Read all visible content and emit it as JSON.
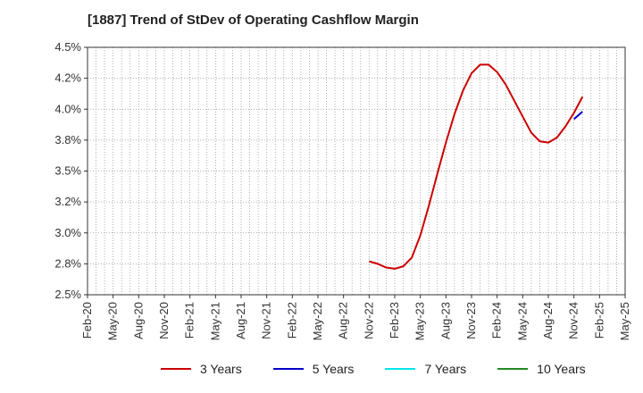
{
  "chart_data": {
    "type": "line",
    "title": "[1887]  Trend of StDev of Operating Cashflow Margin",
    "xlabel": "",
    "ylabel": "",
    "x_ticks": [
      "Feb-20",
      "May-20",
      "Aug-20",
      "Nov-20",
      "Feb-21",
      "May-21",
      "Aug-21",
      "Nov-21",
      "Feb-22",
      "May-22",
      "Aug-22",
      "Nov-22",
      "Feb-23",
      "May-23",
      "Aug-23",
      "Nov-23",
      "Feb-24",
      "May-24",
      "Aug-24",
      "Nov-24",
      "Feb-25",
      "May-25"
    ],
    "y_ticks": [
      "2.5%",
      "2.8%",
      "3.0%",
      "3.2%",
      "3.5%",
      "3.8%",
      "4.0%",
      "4.2%",
      "4.5%"
    ],
    "ylim": [
      2.5,
      4.5
    ],
    "xlim": [
      "2020-02",
      "2025-05"
    ],
    "grid": true,
    "legend_position": "bottom",
    "series": [
      {
        "name": "3 Years",
        "color": "#cc0000",
        "points": [
          [
            "2022-11",
            2.77
          ],
          [
            "2022-12",
            2.75
          ],
          [
            "2023-01",
            2.72
          ],
          [
            "2023-02",
            2.71
          ],
          [
            "2023-03",
            2.73
          ],
          [
            "2023-04",
            2.8
          ],
          [
            "2023-05",
            2.98
          ],
          [
            "2023-06",
            3.22
          ],
          [
            "2023-07",
            3.48
          ],
          [
            "2023-08",
            3.73
          ],
          [
            "2023-09",
            3.96
          ],
          [
            "2023-10",
            4.15
          ],
          [
            "2023-11",
            4.29
          ],
          [
            "2023-12",
            4.36
          ],
          [
            "2024-01",
            4.36
          ],
          [
            "2024-02",
            4.3
          ],
          [
            "2024-03",
            4.2
          ],
          [
            "2024-04",
            4.07
          ],
          [
            "2024-05",
            3.94
          ],
          [
            "2024-06",
            3.81
          ],
          [
            "2024-07",
            3.74
          ],
          [
            "2024-08",
            3.73
          ],
          [
            "2024-09",
            3.77
          ],
          [
            "2024-10",
            3.86
          ],
          [
            "2024-11",
            3.97
          ],
          [
            "2024-12",
            4.1
          ]
        ]
      },
      {
        "name": "5 Years",
        "color": "#0000cc",
        "points": [
          [
            "2024-11",
            3.92
          ],
          [
            "2024-12",
            3.98
          ]
        ]
      },
      {
        "name": "7 Years",
        "color": "#00e5ee",
        "points": []
      },
      {
        "name": "10 Years",
        "color": "#228b22",
        "points": []
      }
    ]
  }
}
